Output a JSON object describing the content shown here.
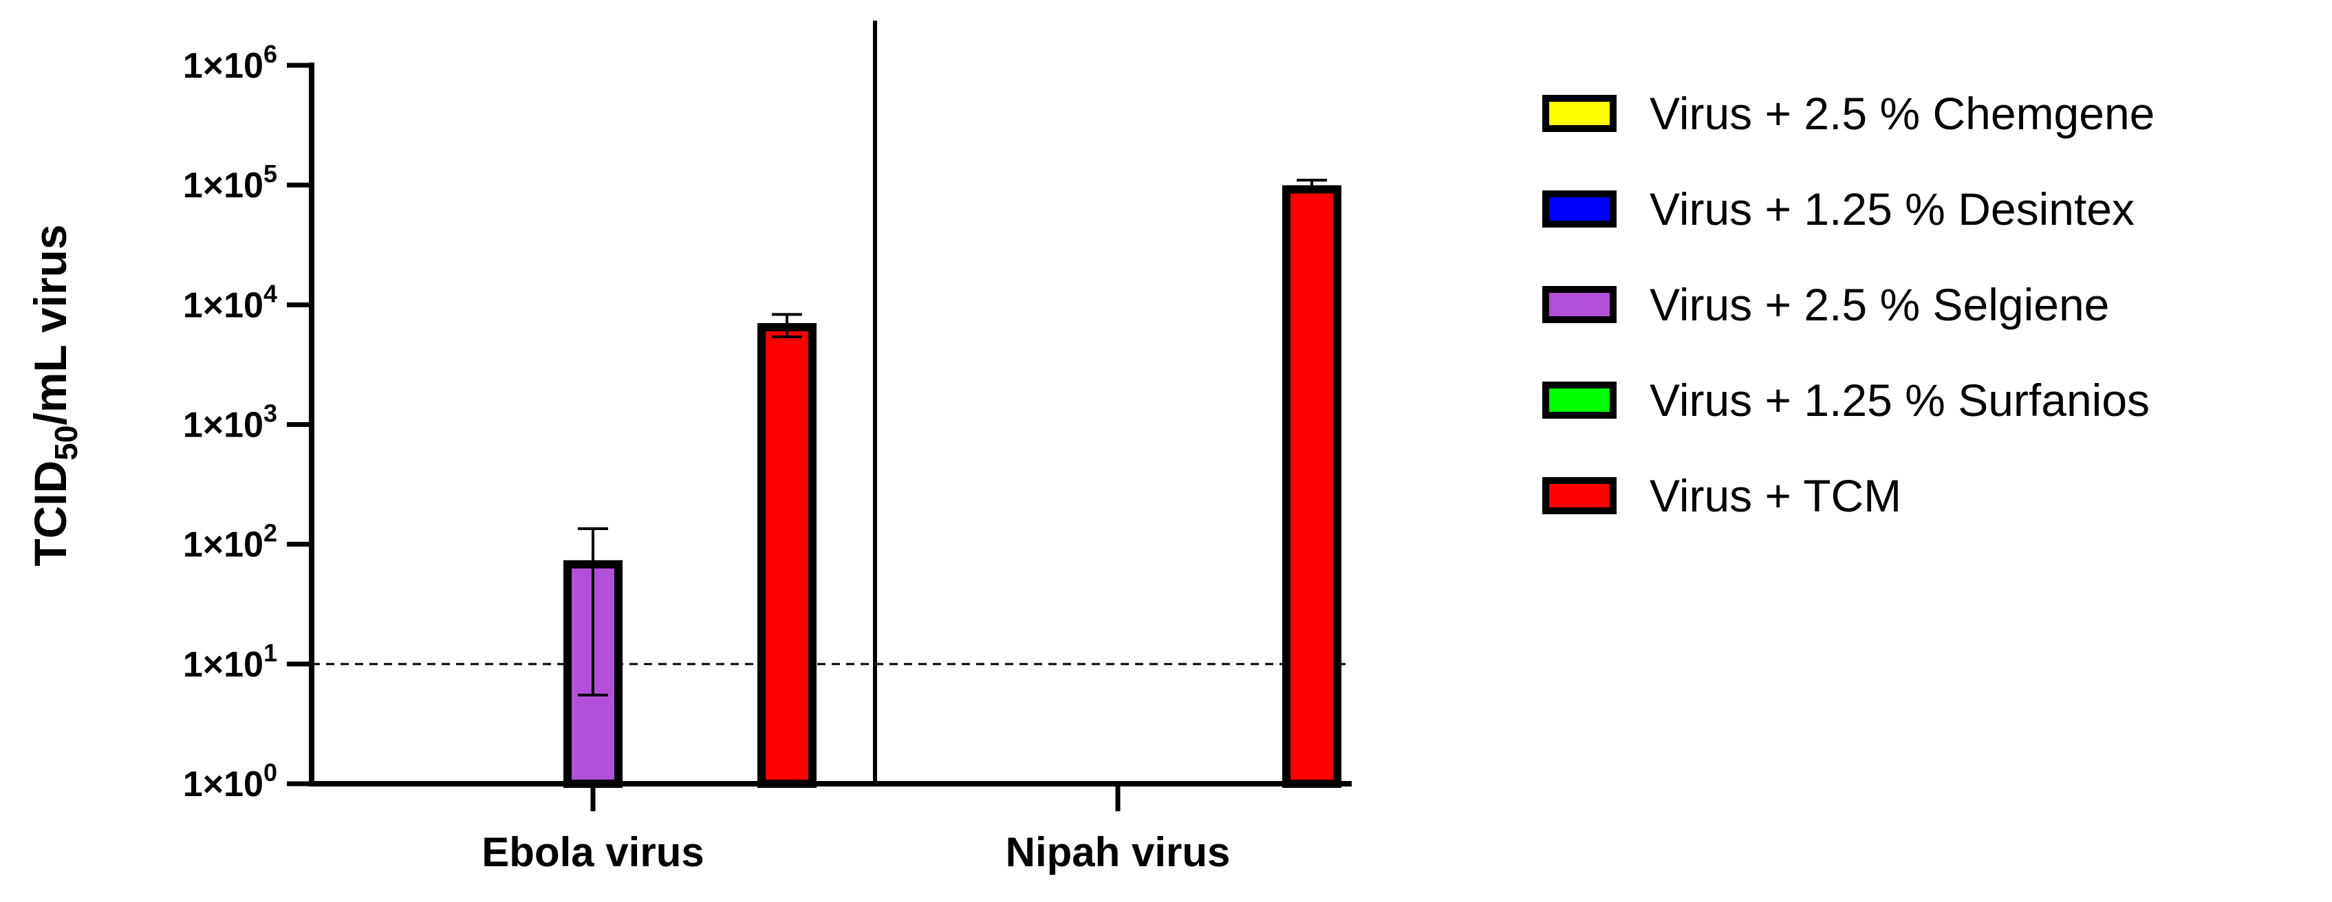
{
  "chart_data": {
    "type": "bar",
    "scale": "log",
    "ylim": [
      1,
      1000000
    ],
    "yticks": [
      {
        "base": "1×10",
        "exp": "0",
        "value": 1
      },
      {
        "base": "1×10",
        "exp": "1",
        "value": 10
      },
      {
        "base": "1×10",
        "exp": "2",
        "value": 100
      },
      {
        "base": "1×10",
        "exp": "3",
        "value": 1000
      },
      {
        "base": "1×10",
        "exp": "4",
        "value": 10000
      },
      {
        "base": "1×10",
        "exp": "5",
        "value": 100000
      },
      {
        "base": "1×10",
        "exp": "6",
        "value": 1000000
      }
    ],
    "ylabel": {
      "main": "TCID",
      "sub": "50",
      "rest": "/mL virus"
    },
    "categories": [
      "Ebola virus",
      "Nipah virus"
    ],
    "detection_limit": 10,
    "series": [
      {
        "name": "Virus + 2.5 % Chemgene",
        "color": "#ffff00",
        "values": [
          null,
          null
        ],
        "err_low": [
          null,
          null
        ],
        "err_high": [
          null,
          null
        ]
      },
      {
        "name": "Virus + 1.25 % Desintex",
        "color": "#0000ff",
        "values": [
          null,
          null
        ],
        "err_low": [
          null,
          null
        ],
        "err_high": [
          null,
          null
        ]
      },
      {
        "name": "Virus + 2.5 % Selgiene",
        "color": "#b34fd8",
        "values": [
          68,
          null
        ],
        "err_low": [
          5.5,
          null
        ],
        "err_high": [
          135,
          null
        ]
      },
      {
        "name": "Virus + 1.25 % Surfanios",
        "color": "#00ff00",
        "values": [
          null,
          null
        ],
        "err_low": [
          null,
          null
        ],
        "err_high": [
          null,
          null
        ]
      },
      {
        "name": "Virus + TCM",
        "color": "#ff0000",
        "values": [
          6500,
          92000
        ],
        "err_low": [
          5400,
          null
        ],
        "err_high": [
          8300,
          110000
        ]
      }
    ],
    "legend_position": "right",
    "grid": false
  }
}
